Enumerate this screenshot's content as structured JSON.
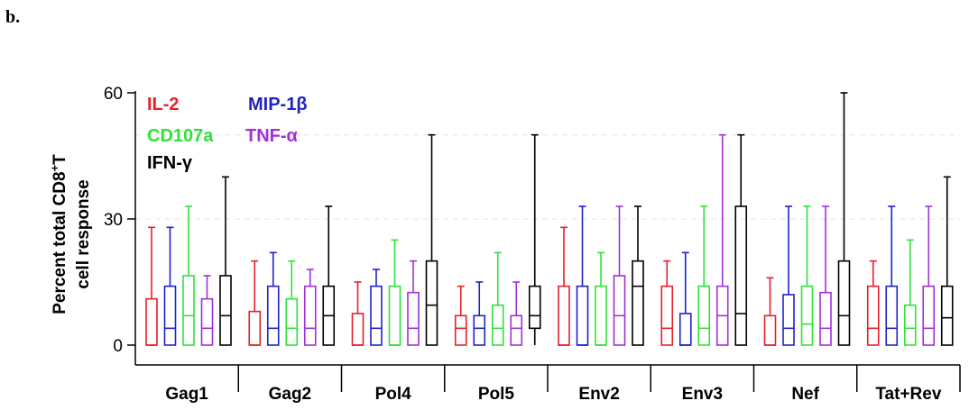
{
  "panel_label": "b.",
  "chart_data": {
    "type": "box",
    "categories": [
      "Gag1",
      "Gag2",
      "Pol4",
      "Pol5",
      "Env2",
      "Env3",
      "Nef",
      "Tat+Rev"
    ],
    "ylabel_line1": "Percent total CD8",
    "ylabel_sup": "+",
    "ylabel_line1_end": "T",
    "ylabel_line2": "cell response",
    "ylim": [
      0,
      60
    ],
    "yticks": [
      0,
      30,
      60
    ],
    "grid": "dashed horizontal at 30 and 50",
    "legend_position": "top-left",
    "series": [
      {
        "name": "IL-2",
        "color": "#e8202a",
        "boxes": [
          {
            "min": 0,
            "q1": 0,
            "median": 0,
            "q3": 11,
            "max": 28
          },
          {
            "min": 0,
            "q1": 0,
            "median": 0,
            "q3": 8,
            "max": 20
          },
          {
            "min": 0,
            "q1": 0,
            "median": 0,
            "q3": 7.5,
            "max": 15
          },
          {
            "min": 0,
            "q1": 0,
            "median": 4,
            "q3": 7,
            "max": 14
          },
          {
            "min": 0,
            "q1": 0,
            "median": 0,
            "q3": 14,
            "max": 28
          },
          {
            "min": 0,
            "q1": 0,
            "median": 4,
            "q3": 14,
            "max": 20
          },
          {
            "min": 0,
            "q1": 0,
            "median": 0,
            "q3": 7,
            "max": 16
          },
          {
            "min": 0,
            "q1": 0,
            "median": 4,
            "q3": 14,
            "max": 20
          }
        ]
      },
      {
        "name": "MIP-1β",
        "color": "#1f23c8",
        "boxes": [
          {
            "min": 0,
            "q1": 0,
            "median": 4,
            "q3": 14,
            "max": 28
          },
          {
            "min": 0,
            "q1": 0,
            "median": 4,
            "q3": 14,
            "max": 22
          },
          {
            "min": 0,
            "q1": 0,
            "median": 4,
            "q3": 14,
            "max": 18
          },
          {
            "min": 0,
            "q1": 0,
            "median": 4,
            "q3": 7,
            "max": 15
          },
          {
            "min": 0,
            "q1": 0,
            "median": 0,
            "q3": 14,
            "max": 33
          },
          {
            "min": 0,
            "q1": 0,
            "median": 0,
            "q3": 7.5,
            "max": 22
          },
          {
            "min": 0,
            "q1": 0,
            "median": 4,
            "q3": 12,
            "max": 33
          },
          {
            "min": 0,
            "q1": 0,
            "median": 4,
            "q3": 14,
            "max": 33
          }
        ]
      },
      {
        "name": "CD107a",
        "color": "#2fe23a",
        "boxes": [
          {
            "min": 0,
            "q1": 0,
            "median": 7,
            "q3": 16.5,
            "max": 33
          },
          {
            "min": 0,
            "q1": 0,
            "median": 4,
            "q3": 11,
            "max": 20
          },
          {
            "min": 0,
            "q1": 0,
            "median": 0,
            "q3": 14,
            "max": 25
          },
          {
            "min": 0,
            "q1": 0,
            "median": 4,
            "q3": 9.5,
            "max": 22
          },
          {
            "min": 0,
            "q1": 0,
            "median": 0,
            "q3": 14,
            "max": 22
          },
          {
            "min": 0,
            "q1": 0,
            "median": 4,
            "q3": 14,
            "max": 33
          },
          {
            "min": 0,
            "q1": 0,
            "median": 5,
            "q3": 14,
            "max": 33
          },
          {
            "min": 0,
            "q1": 0,
            "median": 4,
            "q3": 9.5,
            "max": 25
          }
        ]
      },
      {
        "name": "TNF-α",
        "color": "#a030d8",
        "boxes": [
          {
            "min": 0,
            "q1": 0,
            "median": 4,
            "q3": 11,
            "max": 16.5
          },
          {
            "min": 0,
            "q1": 0,
            "median": 4,
            "q3": 14,
            "max": 18
          },
          {
            "min": 0,
            "q1": 0,
            "median": 4,
            "q3": 12.5,
            "max": 20
          },
          {
            "min": 0,
            "q1": 0,
            "median": 4,
            "q3": 7,
            "max": 15
          },
          {
            "min": 0,
            "q1": 0,
            "median": 7,
            "q3": 16.5,
            "max": 33
          },
          {
            "min": 0,
            "q1": 0,
            "median": 7,
            "q3": 14,
            "max": 50
          },
          {
            "min": 0,
            "q1": 0,
            "median": 4,
            "q3": 12.5,
            "max": 33
          },
          {
            "min": 0,
            "q1": 0,
            "median": 4,
            "q3": 14,
            "max": 33
          }
        ]
      },
      {
        "name": "IFN-γ",
        "color": "#000000",
        "boxes": [
          {
            "min": 0,
            "q1": 0,
            "median": 7,
            "q3": 16.5,
            "max": 40
          },
          {
            "min": 0,
            "q1": 0,
            "median": 7,
            "q3": 14,
            "max": 33
          },
          {
            "min": 0,
            "q1": 0,
            "median": 9.5,
            "q3": 20,
            "max": 50
          },
          {
            "min": 0,
            "q1": 4,
            "median": 7,
            "q3": 14,
            "max": 50
          },
          {
            "min": 0,
            "q1": 0,
            "median": 14,
            "q3": 20,
            "max": 33
          },
          {
            "min": 0,
            "q1": 0,
            "median": 7.5,
            "q3": 33,
            "max": 50
          },
          {
            "min": 0,
            "q1": 0,
            "median": 7,
            "q3": 20,
            "max": 60
          },
          {
            "min": 0,
            "q1": 0,
            "median": 6.5,
            "q3": 14,
            "max": 40
          }
        ]
      }
    ]
  }
}
